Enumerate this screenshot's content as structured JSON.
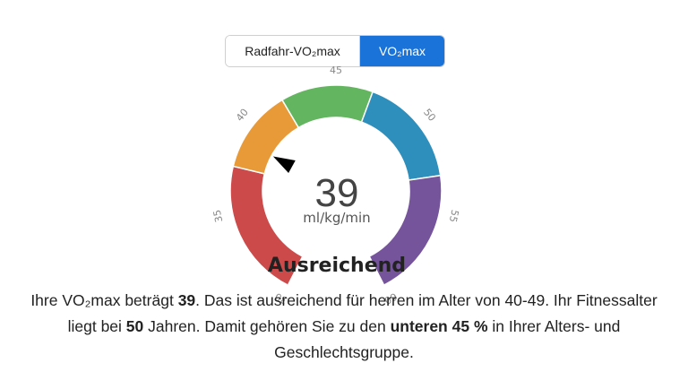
{
  "toggle": {
    "left_label": "Radfahr-VO₂max",
    "right_label": "VO₂max"
  },
  "gauge": {
    "value": 39,
    "unit": "ml/kg/min",
    "rating": "Ausreichend",
    "ticks": [
      "30",
      "35",
      "40",
      "45",
      "50",
      "55",
      "60"
    ],
    "segments": [
      {
        "name": "red",
        "color": "#cc4a4a",
        "from": 30,
        "to": 37.5
      },
      {
        "name": "orange",
        "color": "#e99a38",
        "from": 37.5,
        "to": 42
      },
      {
        "name": "green",
        "color": "#63b560",
        "from": 42,
        "to": 47
      },
      {
        "name": "blue",
        "color": "#2f8fbc",
        "from": 47,
        "to": 53
      },
      {
        "name": "purple",
        "color": "#76549c",
        "from": 53,
        "to": 60
      }
    ]
  },
  "description": {
    "p1": "Ihre VO₂max beträgt ",
    "b1": "39",
    "p2": ". Das ist ausreichend für herren im Alter von 40-49. Ihr Fitnessalter liegt bei ",
    "b2": "50",
    "p3": " Jahren. Damit gehören Sie zu den ",
    "b3": "unteren 45 %",
    "p4": " in Ihrer Alters- und Geschlechtsgruppe."
  }
}
